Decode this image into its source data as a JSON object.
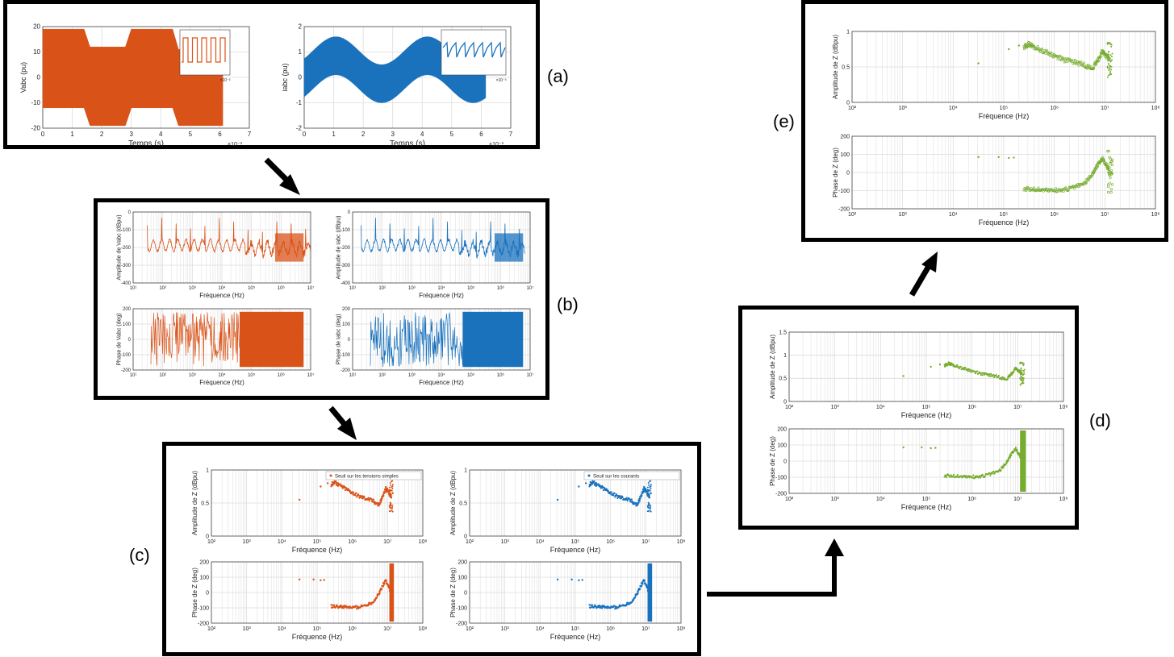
{
  "panel_labels": {
    "a": "(a)",
    "b": "(b)",
    "c": "(c)",
    "d": "(d)",
    "e": "(e)"
  },
  "colors": {
    "orange": "#d95319",
    "blue": "#1a72bd",
    "green": "#77ac30",
    "grid": "#dcdcdc",
    "axis": "#444444"
  },
  "texts": {
    "freq_label": "Fréquence (Hz)",
    "time_label": "Temps (s)",
    "amp_z": "Amplitude de Z (dBpu)",
    "phase_z": "Phase de Z (deg)",
    "amp_vabc": "Amplitude de Vabc (dBpu)",
    "amp_iabc": "Amplitude de Iabc (dBpu)",
    "phase_vabc": "Phase de Vabc (deg)",
    "phase_iabc": "Phase de Iabc (deg)",
    "v_label": "Vabc (pu)",
    "i_label": "iabc (pu)",
    "exp_time": "×10⁻³",
    "exp_inset": "×10⁻⁴",
    "legend_v": "Seuil sur les tensions simples",
    "legend_i": "Seuil sur les courants"
  },
  "chart_data": [
    {
      "id": "a-voltage",
      "type": "line",
      "ylabel": "Vabc (pu)",
      "xlabel": "Temps (s)",
      "xlim": [
        0,
        7
      ],
      "ylim": [
        -20,
        20
      ],
      "x_ticks": [
        "0",
        "1",
        "2",
        "3",
        "4",
        "5",
        "6",
        "7"
      ],
      "y_ticks": [
        "20",
        "10",
        "0",
        "-10",
        "-20"
      ],
      "x_exponent": "×10⁻³",
      "envelope_upper": [
        [
          0,
          19
        ],
        [
          1.4,
          19
        ],
        [
          1.6,
          12
        ],
        [
          2.8,
          12
        ],
        [
          3.0,
          19
        ],
        [
          4.4,
          19
        ],
        [
          4.6,
          11
        ],
        [
          6.1,
          11
        ]
      ],
      "envelope_lower": [
        [
          0,
          -12
        ],
        [
          1.4,
          -12
        ],
        [
          1.6,
          -19
        ],
        [
          2.8,
          -19
        ],
        [
          3.0,
          -12
        ],
        [
          4.4,
          -12
        ],
        [
          4.6,
          -19
        ],
        [
          6.1,
          -19
        ]
      ]
    },
    {
      "id": "a-current",
      "type": "line",
      "ylabel": "iabc (pu)",
      "xlabel": "Temps (s)",
      "xlim": [
        0,
        7
      ],
      "ylim": [
        -2,
        2
      ],
      "x_ticks": [
        "0",
        "1",
        "2",
        "3",
        "4",
        "5",
        "6",
        "7"
      ],
      "y_ticks": [
        "2",
        "1",
        "0",
        "-1",
        "-2"
      ],
      "x_exponent": "×10⁻³"
    },
    {
      "id": "b-grid",
      "type": "line",
      "xscale": "log",
      "xlim": [
        10,
        10000000
      ],
      "x_ticks": [
        "10¹",
        "10²",
        "10³",
        "10⁴",
        "10⁵",
        "10⁶",
        "10⁷"
      ],
      "amp_ylim": [
        -400,
        0
      ],
      "amp_ticks": [
        "0",
        "-100",
        "-200",
        "-300",
        "-400"
      ],
      "phase_ylim": [
        -200,
        200
      ],
      "phase_ticks": [
        "200",
        "100",
        "0",
        "-100",
        "-200"
      ]
    },
    {
      "id": "z-plots",
      "type": "scatter",
      "xscale": "log",
      "xlim": [
        100,
        100000000
      ],
      "x_ticks": [
        "10²",
        "10³",
        "10⁴",
        "10⁵",
        "10⁶",
        "10⁷",
        "10⁸"
      ],
      "amp_ylim": [
        0,
        1
      ],
      "amp_ylim_d": [
        0,
        1.5
      ],
      "phase_ylim": [
        -200,
        200
      ],
      "phase_ticks": [
        "200",
        "100",
        "0",
        "-100",
        "-200"
      ],
      "amp_curve": [
        [
          5.4,
          0.78
        ],
        [
          5.5,
          0.82
        ],
        [
          5.6,
          0.78
        ],
        [
          5.8,
          0.72
        ],
        [
          6.0,
          0.66
        ],
        [
          6.2,
          0.6
        ],
        [
          6.4,
          0.57
        ],
        [
          6.6,
          0.53
        ],
        [
          6.75,
          0.47
        ],
        [
          6.85,
          0.58
        ],
        [
          6.95,
          0.72
        ],
        [
          7.0,
          0.68
        ],
        [
          7.1,
          0.6
        ]
      ],
      "phase_curve": [
        [
          5.4,
          -90
        ],
        [
          5.6,
          -92
        ],
        [
          5.8,
          -95
        ],
        [
          6.0,
          -98
        ],
        [
          6.2,
          -95
        ],
        [
          6.4,
          -80
        ],
        [
          6.6,
          -60
        ],
        [
          6.75,
          -10
        ],
        [
          6.85,
          40
        ],
        [
          6.95,
          80
        ],
        [
          7.05,
          30
        ],
        [
          7.1,
          -20
        ]
      ]
    }
  ]
}
